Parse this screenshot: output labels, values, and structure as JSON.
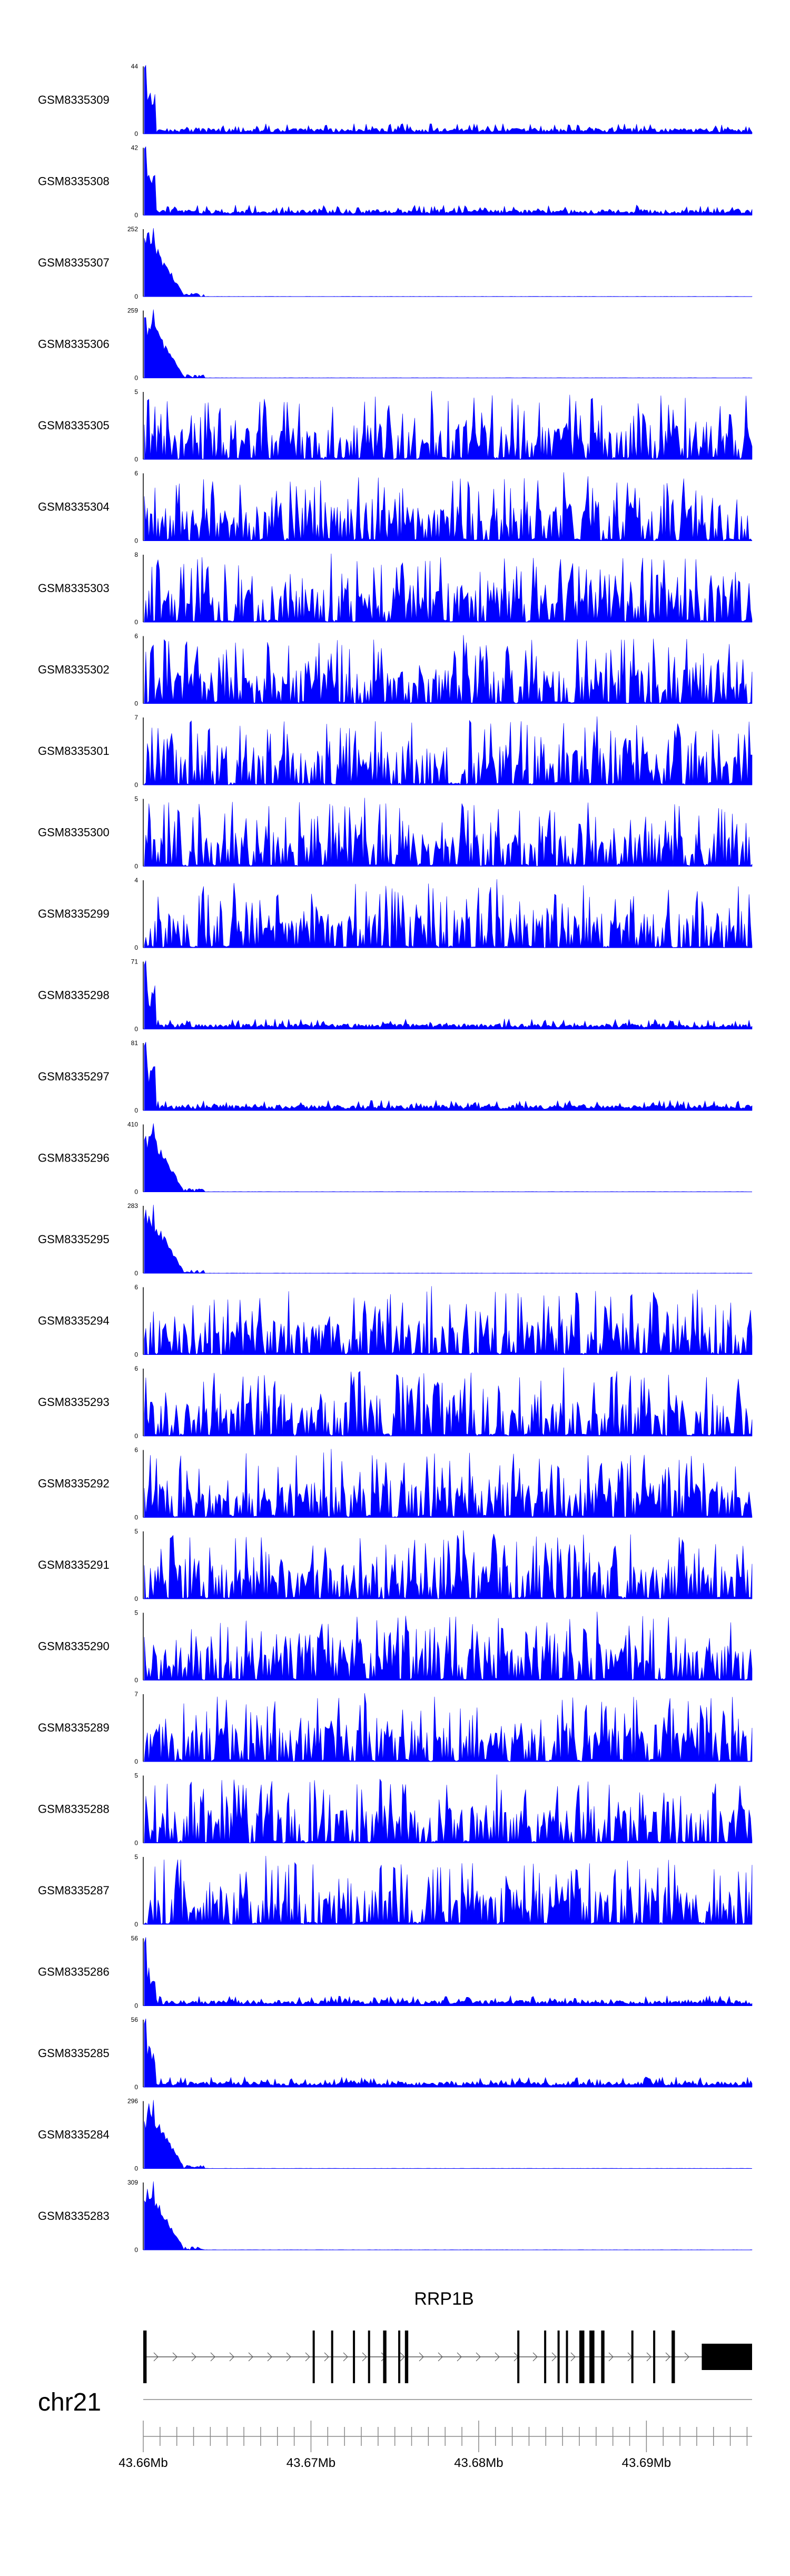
{
  "chart_data": {
    "type": "area",
    "chromosome": "chr21",
    "x_range_mb": [
      43.66,
      43.6963
    ],
    "x_ticks": [
      "43.66Mb",
      "43.67Mb",
      "43.68Mb",
      "43.69Mb"
    ],
    "x_tick_values_mb": [
      43.66,
      43.67,
      43.68,
      43.69
    ],
    "color": "#0000ff",
    "tracks": [
      {
        "name": "GSM8335309",
        "ymax": "44",
        "ymin": "0",
        "profile": "background",
        "peak_value": 44
      },
      {
        "name": "GSM8335308",
        "ymax": "42",
        "ymin": "0",
        "profile": "background",
        "peak_value": 42
      },
      {
        "name": "GSM8335307",
        "ymax": "252",
        "ymin": "0",
        "profile": "tss",
        "peak_value": 252
      },
      {
        "name": "GSM8335306",
        "ymax": "259",
        "ymin": "0",
        "profile": "tss",
        "peak_value": 259
      },
      {
        "name": "GSM8335305",
        "ymax": "5",
        "ymin": "0",
        "profile": "noise",
        "peak_value": 5
      },
      {
        "name": "GSM8335304",
        "ymax": "6",
        "ymin": "0",
        "profile": "noise",
        "peak_value": 6
      },
      {
        "name": "GSM8335303",
        "ymax": "8",
        "ymin": "0",
        "profile": "noise",
        "peak_value": 8
      },
      {
        "name": "GSM8335302",
        "ymax": "6",
        "ymin": "0",
        "profile": "noise",
        "peak_value": 6
      },
      {
        "name": "GSM8335301",
        "ymax": "7",
        "ymin": "0",
        "profile": "noise",
        "peak_value": 7
      },
      {
        "name": "GSM8335300",
        "ymax": "5",
        "ymin": "0",
        "profile": "noise",
        "peak_value": 5
      },
      {
        "name": "GSM8335299",
        "ymax": "4",
        "ymin": "0",
        "profile": "noise",
        "peak_value": 4
      },
      {
        "name": "GSM8335298",
        "ymax": "71",
        "ymin": "0",
        "profile": "background",
        "peak_value": 71
      },
      {
        "name": "GSM8335297",
        "ymax": "81",
        "ymin": "0",
        "profile": "background",
        "peak_value": 81
      },
      {
        "name": "GSM8335296",
        "ymax": "410",
        "ymin": "0",
        "profile": "tss",
        "peak_value": 410
      },
      {
        "name": "GSM8335295",
        "ymax": "283",
        "ymin": "0",
        "profile": "tss",
        "peak_value": 283
      },
      {
        "name": "GSM8335294",
        "ymax": "6",
        "ymin": "0",
        "profile": "noise",
        "peak_value": 6
      },
      {
        "name": "GSM8335293",
        "ymax": "6",
        "ymin": "0",
        "profile": "noise",
        "peak_value": 6
      },
      {
        "name": "GSM8335292",
        "ymax": "6",
        "ymin": "0",
        "profile": "noise",
        "peak_value": 6
      },
      {
        "name": "GSM8335291",
        "ymax": "5",
        "ymin": "0",
        "profile": "noise",
        "peak_value": 5
      },
      {
        "name": "GSM8335290",
        "ymax": "5",
        "ymin": "0",
        "profile": "noise",
        "peak_value": 5
      },
      {
        "name": "GSM8335289",
        "ymax": "7",
        "ymin": "0",
        "profile": "noise",
        "peak_value": 7
      },
      {
        "name": "GSM8335288",
        "ymax": "5",
        "ymin": "0",
        "profile": "noise",
        "peak_value": 5
      },
      {
        "name": "GSM8335287",
        "ymax": "5",
        "ymin": "0",
        "profile": "noise",
        "peak_value": 5
      },
      {
        "name": "GSM8335286",
        "ymax": "56",
        "ymin": "0",
        "profile": "background",
        "peak_value": 56
      },
      {
        "name": "GSM8335285",
        "ymax": "56",
        "ymin": "0",
        "profile": "background",
        "peak_value": 56
      },
      {
        "name": "GSM8335284",
        "ymax": "296",
        "ymin": "0",
        "profile": "tss",
        "peak_value": 296
      },
      {
        "name": "GSM8335283",
        "ymax": "309",
        "ymin": "0",
        "profile": "tss",
        "peak_value": 309
      }
    ],
    "gene": {
      "name": "RRP1B",
      "strand": "+",
      "start_mb": 43.66,
      "end_mb": 43.6963,
      "exons_mb": [
        [
          43.66,
          43.6602
        ],
        [
          43.6701,
          43.6702
        ],
        [
          43.6712,
          43.6713
        ],
        [
          43.6725,
          43.6726
        ],
        [
          43.6734,
          43.6735
        ],
        [
          43.6743,
          43.6745
        ],
        [
          43.6752,
          43.6753
        ],
        [
          43.6756,
          43.6758
        ],
        [
          43.6823,
          43.6824
        ],
        [
          43.6839,
          43.684
        ],
        [
          43.6847,
          43.6848
        ],
        [
          43.6852,
          43.6853
        ],
        [
          43.686,
          43.6863
        ],
        [
          43.6866,
          43.6869
        ],
        [
          43.6873,
          43.6875
        ],
        [
          43.6891,
          43.6892
        ],
        [
          43.6904,
          43.6905
        ],
        [
          43.6915,
          43.6917
        ],
        [
          43.6933,
          43.6963
        ]
      ]
    }
  }
}
